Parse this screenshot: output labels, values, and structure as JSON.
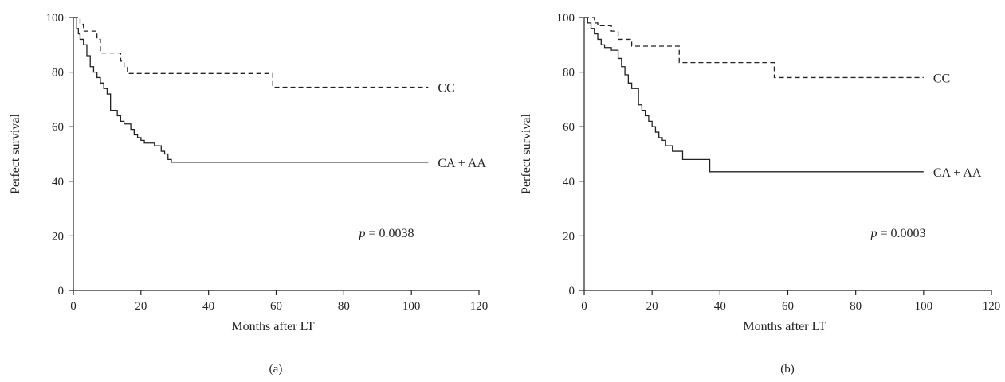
{
  "chart_data": [
    {
      "type": "line",
      "panel_label": "(a)",
      "xlabel": "Months after LT",
      "ylabel": "Perfect survival",
      "xlim": [
        0,
        120
      ],
      "ylim": [
        0,
        100
      ],
      "xticks": [
        0,
        20,
        40,
        60,
        80,
        100,
        120
      ],
      "yticks": [
        0,
        20,
        40,
        60,
        80,
        100
      ],
      "annotation": {
        "p_symbol": "p",
        "p_value_text": " = 0.0038"
      },
      "series": [
        {
          "name": "CC",
          "style": "dashed",
          "x": [
            0,
            1,
            2,
            3,
            4,
            5,
            7,
            8,
            12,
            14,
            15,
            16,
            17,
            59,
            105
          ],
          "y": [
            100,
            100,
            97.5,
            95,
            95,
            95,
            92,
            87,
            87,
            84,
            82,
            79.5,
            79.5,
            74.5,
            74.5
          ]
        },
        {
          "name": "CA + AA",
          "style": "solid",
          "x": [
            0,
            1,
            1.5,
            2,
            3,
            4,
            5,
            6,
            7,
            8,
            9,
            10,
            11,
            13,
            14,
            15,
            17,
            18,
            19,
            20,
            21,
            22,
            24,
            26,
            27,
            28,
            29,
            105
          ],
          "y": [
            100,
            96,
            94,
            92,
            90,
            86,
            82,
            80,
            78,
            76,
            74,
            72,
            66,
            64,
            62,
            61,
            59,
            57,
            56,
            55,
            54,
            54,
            53,
            51,
            50,
            48,
            47,
            47
          ]
        }
      ]
    },
    {
      "type": "line",
      "panel_label": "(b)",
      "xlabel": "Months after LT",
      "ylabel": "Perfect survival",
      "xlim": [
        0,
        120
      ],
      "ylim": [
        0,
        100
      ],
      "xticks": [
        0,
        20,
        40,
        60,
        80,
        100,
        120
      ],
      "yticks": [
        0,
        20,
        40,
        60,
        80,
        100
      ],
      "annotation": {
        "p_symbol": "p",
        "p_value_text": " = 0.0003"
      },
      "series": [
        {
          "name": "CC",
          "style": "dashed",
          "x": [
            0,
            2,
            3,
            4,
            8,
            10,
            14,
            27,
            28,
            56,
            100
          ],
          "y": [
            100,
            100,
            98,
            97,
            95,
            92,
            89.5,
            89.5,
            83.5,
            78,
            78
          ]
        },
        {
          "name": "CA + AA",
          "style": "solid",
          "x": [
            0,
            1,
            2,
            3,
            4,
            5,
            6,
            8,
            10,
            11,
            12,
            13,
            14,
            16,
            17,
            18,
            19,
            20,
            21,
            22,
            23,
            24,
            26,
            29,
            37,
            100
          ],
          "y": [
            100,
            98,
            96,
            94,
            92,
            90,
            89,
            88,
            85,
            82,
            79,
            76,
            74,
            68,
            66,
            64,
            62,
            60,
            58,
            56,
            55,
            53,
            51,
            48,
            43.5,
            43.5
          ]
        }
      ]
    }
  ]
}
